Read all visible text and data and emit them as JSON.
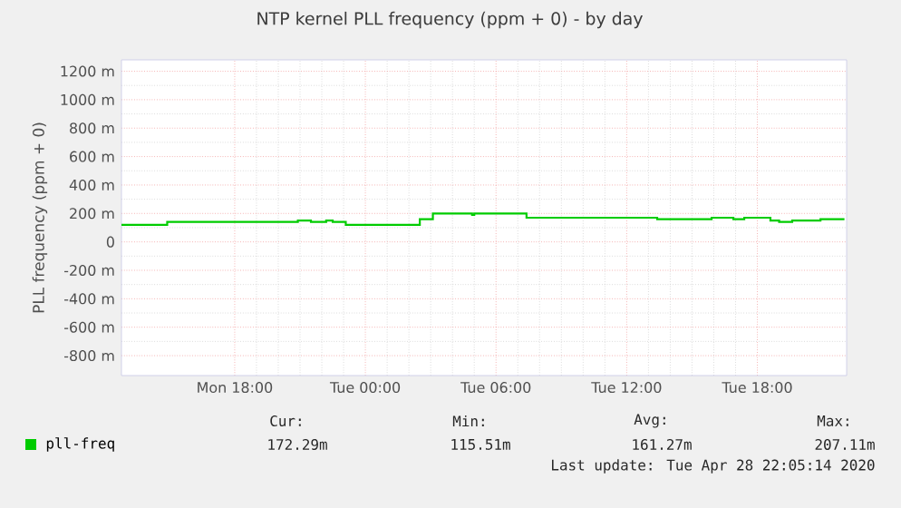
{
  "chart_data": {
    "type": "step",
    "title": "NTP kernel PLL frequency (ppm + 0) - by day",
    "ylabel": "PLL frequency (ppm + 0)",
    "x": [
      "2020-04-27T12:48",
      "2020-04-27T14:54",
      "2020-04-27T20:54",
      "2020-04-27T21:30",
      "2020-04-27T22:12",
      "2020-04-27T22:30",
      "2020-04-27T23:06",
      "2020-04-28T02:30",
      "2020-04-28T03:06",
      "2020-04-28T04:54",
      "2020-04-28T05:00",
      "2020-04-28T07:24",
      "2020-04-28T13:24",
      "2020-04-28T15:54",
      "2020-04-28T16:54",
      "2020-04-28T17:24",
      "2020-04-28T18:36",
      "2020-04-28T19:00",
      "2020-04-28T19:36",
      "2020-04-28T20:54",
      "2020-04-28T22:00"
    ],
    "series": [
      {
        "name": "pll-freq",
        "color": "#00cc00",
        "values": [
          120,
          140,
          150,
          140,
          150,
          140,
          120,
          160,
          200,
          190,
          200,
          170,
          160,
          170,
          160,
          170,
          150,
          140,
          150,
          160,
          160
        ]
      }
    ],
    "xlim": [
      "2020-04-27T12:48",
      "2020-04-28T22:06"
    ],
    "ylim": [
      -940,
      1280
    ],
    "xticks": [
      {
        "value": "2020-04-27T18:00",
        "label": "Mon 18:00"
      },
      {
        "value": "2020-04-28T00:00",
        "label": "Tue 00:00"
      },
      {
        "value": "2020-04-28T06:00",
        "label": "Tue 06:00"
      },
      {
        "value": "2020-04-28T12:00",
        "label": "Tue 12:00"
      },
      {
        "value": "2020-04-28T18:00",
        "label": "Tue 18:00"
      }
    ],
    "yticks": [
      {
        "value": -800,
        "label": "-800 m"
      },
      {
        "value": -600,
        "label": "-600 m"
      },
      {
        "value": -400,
        "label": "-400 m"
      },
      {
        "value": -200,
        "label": "-200 m"
      },
      0,
      {
        "value": 200,
        "label": "200 m"
      },
      {
        "value": 400,
        "label": "400 m"
      },
      {
        "value": 600,
        "label": "600 m"
      },
      {
        "value": 800,
        "label": "800 m"
      },
      {
        "value": 1000,
        "label": "1000 m"
      },
      {
        "value": 1200,
        "label": "1200 m"
      }
    ],
    "grid": true,
    "legend": "bottom",
    "annotations": [
      "Cur:",
      "Min:",
      "Avg:",
      "Max:",
      "172.29m",
      "115.51m",
      "161.27m",
      "207.11m",
      "Last update: Tue Apr 28 22:05:14 2020"
    ]
  }
}
